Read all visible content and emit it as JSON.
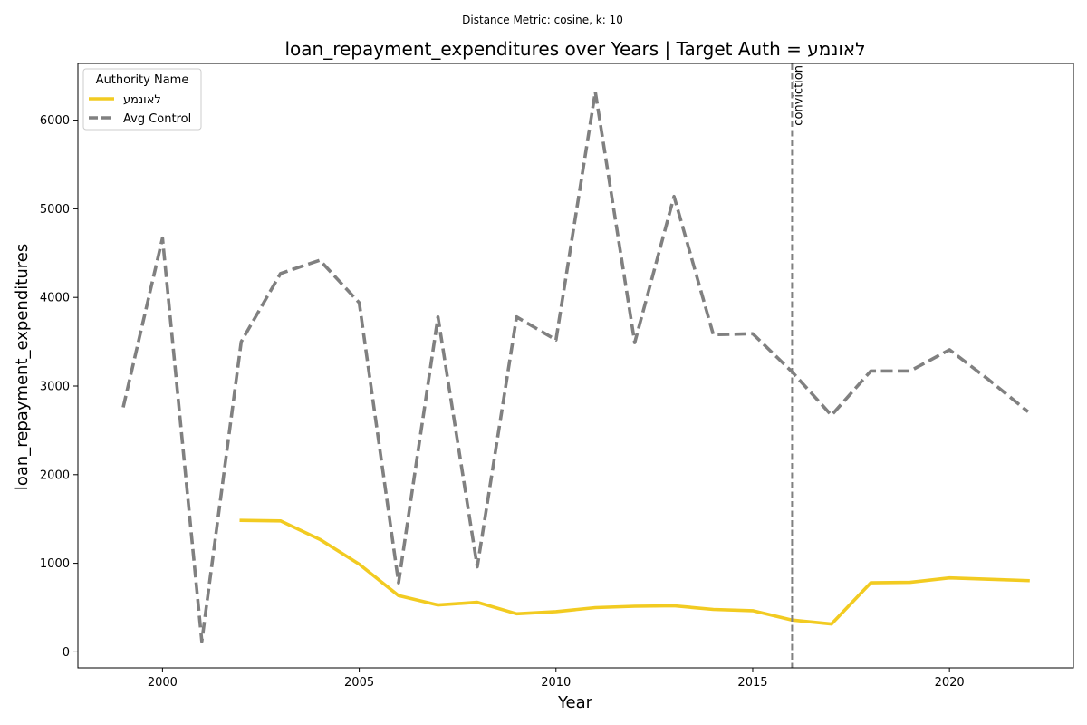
{
  "suptitle": "Distance Metric: cosine, k: 10",
  "chart_data": {
    "type": "line",
    "title": "loan_repayment_expenditures over Years | Target Auth = לאונמע",
    "xlabel": "Year",
    "ylabel": "loan_repayment_expenditures",
    "xlim": [
      1997.85,
      2023.15
    ],
    "ylim": [
      -180,
      6640
    ],
    "xticks": [
      2000,
      2005,
      2010,
      2015,
      2020
    ],
    "yticks": [
      0,
      1000,
      2000,
      3000,
      4000,
      5000,
      6000
    ],
    "grid": false,
    "legend": {
      "title": "Authority Name",
      "placement": "top-left"
    },
    "series": [
      {
        "name": "לאונמע",
        "color": "#f2cb21",
        "style": "solid",
        "x": [
          2002,
          2003,
          2004,
          2005,
          2006,
          2007,
          2008,
          2009,
          2010,
          2011,
          2012,
          2013,
          2014,
          2015,
          2016,
          2017,
          2018,
          2019,
          2020,
          2021,
          2022
        ],
        "y": [
          1485,
          1478,
          1270,
          990,
          635,
          530,
          560,
          430,
          455,
          500,
          515,
          520,
          480,
          465,
          360,
          315,
          780,
          785,
          835,
          820,
          805
        ]
      },
      {
        "name": "Avg Control",
        "color": "#808080",
        "style": "dashed",
        "x": [
          1999,
          2000,
          2001,
          2002,
          2003,
          2004,
          2005,
          2006,
          2007,
          2008,
          2009,
          2010,
          2011,
          2012,
          2013,
          2014,
          2015,
          2016,
          2017,
          2018,
          2019,
          2020,
          2021,
          2022
        ],
        "y": [
          2760,
          4670,
          120,
          3500,
          4270,
          4420,
          3940,
          780,
          3780,
          960,
          3780,
          3520,
          6320,
          3490,
          5140,
          3580,
          3590,
          3160,
          2670,
          3170,
          3170,
          3410,
          3070,
          2710
        ]
      }
    ],
    "annotations": [
      {
        "type": "vline",
        "x": 2016,
        "label": "conviction",
        "color": "#808080"
      }
    ]
  }
}
